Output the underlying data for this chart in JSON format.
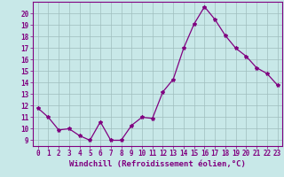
{
  "x": [
    0,
    1,
    2,
    3,
    4,
    5,
    6,
    7,
    8,
    9,
    10,
    11,
    12,
    13,
    14,
    15,
    16,
    17,
    18,
    19,
    20,
    21,
    22,
    23
  ],
  "y": [
    11.8,
    11.0,
    9.9,
    10.0,
    9.4,
    9.0,
    10.6,
    9.0,
    9.0,
    10.3,
    11.0,
    10.9,
    13.2,
    14.3,
    17.0,
    19.1,
    20.6,
    19.5,
    18.1,
    17.0,
    16.3,
    15.3,
    14.8,
    13.8
  ],
  "line_color": "#800080",
  "marker": "*",
  "marker_size": 3,
  "bg_color": "#c8e8e8",
  "grid_color": "#9fbebe",
  "xlabel": "Windchill (Refroidissement éolien,°C)",
  "ylim": [
    8.5,
    21.0
  ],
  "xlim": [
    -0.5,
    23.5
  ],
  "yticks": [
    9,
    10,
    11,
    12,
    13,
    14,
    15,
    16,
    17,
    18,
    19,
    20
  ],
  "xticks": [
    0,
    1,
    2,
    3,
    4,
    5,
    6,
    7,
    8,
    9,
    10,
    11,
    12,
    13,
    14,
    15,
    16,
    17,
    18,
    19,
    20,
    21,
    22,
    23
  ],
  "tick_label_fontsize": 5.5,
  "xlabel_fontsize": 6.5,
  "line_width": 0.9
}
